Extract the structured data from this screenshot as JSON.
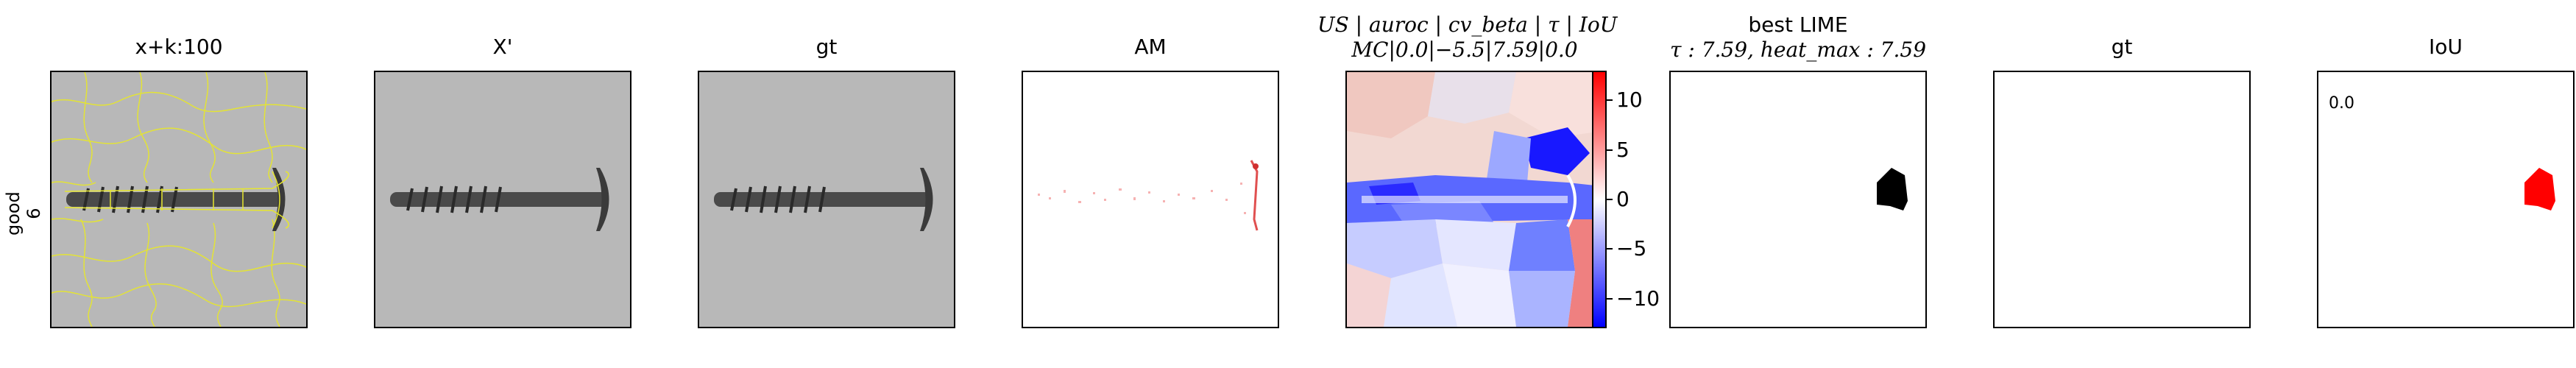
{
  "row_label": {
    "line1": "good",
    "line2": "6"
  },
  "panels": [
    {
      "id": "superpixels",
      "title": "x+k:100"
    },
    {
      "id": "x-prime",
      "title": "X'"
    },
    {
      "id": "gt-image",
      "title": "gt"
    },
    {
      "id": "attention-map",
      "title": "AM"
    },
    {
      "id": "us-map",
      "title_line1": "US | auroc | cv_beta | τ | IoU",
      "title_line2": "MC|0.0|−5.5|7.59|0.0"
    },
    {
      "id": "best-lime",
      "title_line1": "best LIME",
      "title_line2": "τ : 7.59, heat_max : 7.59"
    },
    {
      "id": "gt-mask",
      "title": "gt"
    },
    {
      "id": "iou",
      "title": "IoU",
      "value": "0.0"
    }
  ],
  "colorbar": {
    "ticks": [
      "10",
      "5",
      "0",
      "−5",
      "−10"
    ],
    "tick_values": [
      10,
      5,
      0,
      -5,
      -10
    ],
    "range": [
      -13,
      13
    ],
    "colormap": "bwr"
  },
  "colors": {
    "superpixel_edge": "#e6e62e",
    "mask_black": "#000000",
    "iou_red": "#ff0000"
  }
}
